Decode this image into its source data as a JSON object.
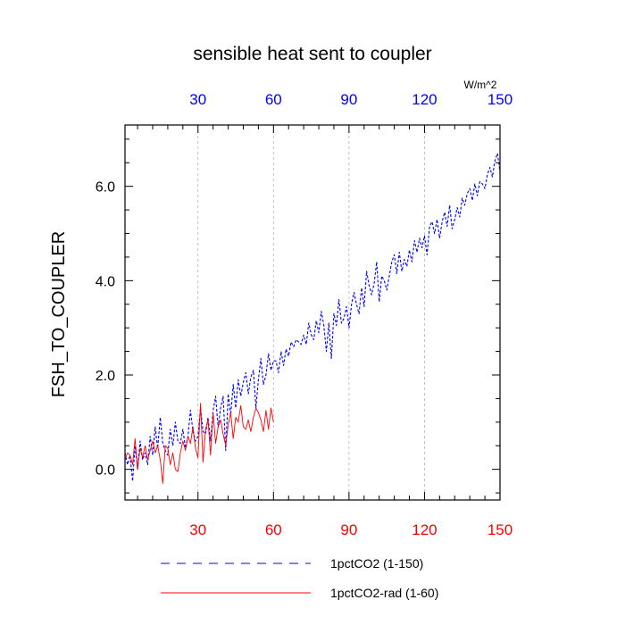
{
  "chart_data": {
    "type": "line",
    "title": "sensible heat sent to coupler",
    "ylabel": "FSH_TO_COUPLER",
    "top_axis_units": "W/m^2",
    "xlim": [
      1,
      150
    ],
    "ylim": [
      -0.65,
      7.3
    ],
    "x_ticks": [
      30,
      60,
      90,
      120,
      150
    ],
    "y_ticks": [
      0.0,
      2.0,
      4.0,
      6.0
    ],
    "y_tick_labels": [
      "0.0",
      "2.0",
      "4.0",
      "6.0"
    ],
    "x_tick_color_bottom": "#ff0000",
    "x_tick_color_top": "#0000ff",
    "grid": "vertical dashed at x ticks",
    "legend_position": "bottom",
    "series": [
      {
        "name": "1pctCO2 (1-150)",
        "color": "#0000ff",
        "style": "dashed",
        "x": [
          1,
          2,
          3,
          4,
          5,
          6,
          7,
          8,
          9,
          10,
          11,
          12,
          13,
          14,
          15,
          16,
          17,
          18,
          19,
          20,
          21,
          22,
          23,
          24,
          25,
          26,
          27,
          28,
          29,
          30,
          31,
          32,
          33,
          34,
          35,
          36,
          37,
          38,
          39,
          40,
          41,
          42,
          43,
          44,
          45,
          46,
          47,
          48,
          49,
          50,
          51,
          52,
          53,
          54,
          55,
          56,
          57,
          58,
          59,
          60,
          61,
          62,
          63,
          64,
          65,
          66,
          67,
          68,
          69,
          70,
          71,
          72,
          73,
          74,
          75,
          76,
          77,
          78,
          79,
          80,
          81,
          82,
          83,
          84,
          85,
          86,
          87,
          88,
          89,
          90,
          91,
          92,
          93,
          94,
          95,
          96,
          97,
          98,
          99,
          100,
          101,
          102,
          103,
          104,
          105,
          106,
          107,
          108,
          109,
          110,
          111,
          112,
          113,
          114,
          115,
          116,
          117,
          118,
          119,
          120,
          121,
          122,
          123,
          124,
          125,
          126,
          127,
          128,
          129,
          130,
          131,
          132,
          133,
          134,
          135,
          136,
          137,
          138,
          139,
          140,
          141,
          142,
          143,
          144,
          145,
          146,
          147,
          148,
          149,
          150
        ],
        "y": [
          0.35,
          0.1,
          0.3,
          -0.25,
          0.5,
          0.0,
          0.6,
          0.2,
          0.35,
          0.1,
          0.7,
          0.3,
          0.9,
          0.45,
          1.1,
          0.55,
          0.4,
          0.3,
          0.85,
          0.5,
          1.0,
          0.6,
          0.55,
          0.85,
          0.45,
          0.7,
          1.25,
          0.8,
          0.6,
          0.7,
          1.3,
          0.8,
          0.75,
          1.1,
          0.6,
          1.25,
          1.55,
          0.9,
          1.3,
          1.55,
          0.4,
          1.6,
          1.15,
          1.8,
          1.3,
          1.9,
          1.55,
          1.85,
          2.05,
          1.6,
          1.95,
          2.1,
          1.3,
          1.9,
          2.35,
          1.8,
          2.0,
          2.45,
          2.1,
          2.3,
          2.3,
          2.05,
          2.5,
          2.2,
          2.55,
          2.4,
          2.7,
          2.6,
          2.75,
          2.7,
          2.65,
          2.85,
          2.65,
          3.1,
          2.85,
          2.75,
          3.15,
          2.9,
          3.35,
          3.05,
          2.5,
          3.1,
          2.35,
          3.3,
          3.05,
          3.6,
          3.1,
          3.2,
          3.45,
          3.0,
          3.5,
          3.75,
          3.5,
          3.3,
          3.85,
          3.45,
          4.2,
          3.9,
          3.7,
          3.95,
          4.4,
          3.55,
          4.1,
          4.0,
          3.8,
          4.1,
          4.4,
          4.55,
          4.15,
          4.6,
          4.2,
          4.45,
          4.3,
          4.65,
          4.4,
          4.85,
          4.6,
          4.9,
          4.7,
          4.95,
          4.55,
          5.15,
          5.25,
          5.0,
          5.3,
          4.9,
          5.25,
          5.45,
          5.15,
          5.6,
          5.1,
          5.3,
          5.55,
          5.35,
          5.75,
          5.6,
          5.85,
          5.95,
          5.7,
          6.05,
          5.8,
          6.1,
          6.05,
          5.95,
          6.25,
          6.4,
          6.2,
          6.55,
          6.7,
          6.3
        ]
      },
      {
        "name": "1pctCO2-rad (1-60)",
        "color": "#ff0000",
        "style": "solid",
        "x": [
          1,
          2,
          3,
          4,
          5,
          6,
          7,
          8,
          9,
          10,
          11,
          12,
          13,
          14,
          15,
          16,
          17,
          18,
          19,
          20,
          21,
          22,
          23,
          24,
          25,
          26,
          27,
          28,
          29,
          30,
          31,
          32,
          33,
          34,
          35,
          36,
          37,
          38,
          39,
          40,
          41,
          42,
          43,
          44,
          45,
          46,
          47,
          48,
          49,
          50,
          51,
          52,
          53,
          54,
          55,
          56,
          57,
          58,
          59,
          60
        ],
        "y": [
          0.2,
          0.35,
          0.3,
          0.1,
          0.65,
          0.0,
          0.45,
          0.25,
          0.5,
          0.2,
          0.4,
          0.6,
          0.35,
          0.5,
          0.2,
          -0.3,
          0.5,
          0.45,
          0.1,
          0.35,
          0.0,
          -0.05,
          0.35,
          0.6,
          0.4,
          0.7,
          0.55,
          0.9,
          0.45,
          0.25,
          1.4,
          0.15,
          0.85,
          1.05,
          0.3,
          1.2,
          0.55,
          0.9,
          1.05,
          0.75,
          0.5,
          0.95,
          1.2,
          0.65,
          1.1,
          1.0,
          1.35,
          0.9,
          0.85,
          1.05,
          0.8,
          1.1,
          1.3,
          1.2,
          1.05,
          0.8,
          1.25,
          0.85,
          1.3,
          1.0
        ]
      }
    ]
  }
}
